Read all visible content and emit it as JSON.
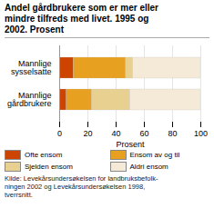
{
  "chart_data": {
    "type": "bar",
    "orientation": "horizontal",
    "stacked": true,
    "title": "Andel gårdbrukere som er mer eller\nmindre tilfreds med livet. 1995 og\n2002. Prosent",
    "categories": [
      "Mannlige\nsysselsatte",
      "Mannlige\ngårdbrukere"
    ],
    "series": [
      {
        "name": "Ofte ensom",
        "color": "#cc4400",
        "values": [
          10,
          5
        ]
      },
      {
        "name": "Ensom av og til",
        "color": "#e8a020",
        "values": [
          37,
          18
        ]
      },
      {
        "name": "Sjelden ensom",
        "color": "#e8d090",
        "values": [
          5,
          27
        ]
      },
      {
        "name": "Aldri ensom",
        "color": "#f5ead8",
        "values": [
          48,
          50
        ]
      }
    ],
    "xlabel": "Prosent",
    "xlim": [
      0,
      100
    ],
    "xticks": [
      0,
      20,
      40,
      60,
      80,
      100
    ],
    "grid": true,
    "legend": "bottom",
    "source": "Kilde: Levekårsundersøkelsen for landbruksbefolk-\nningen 2002 og Levekårsundersøkelsen 1998,\ntverrsnitt."
  }
}
